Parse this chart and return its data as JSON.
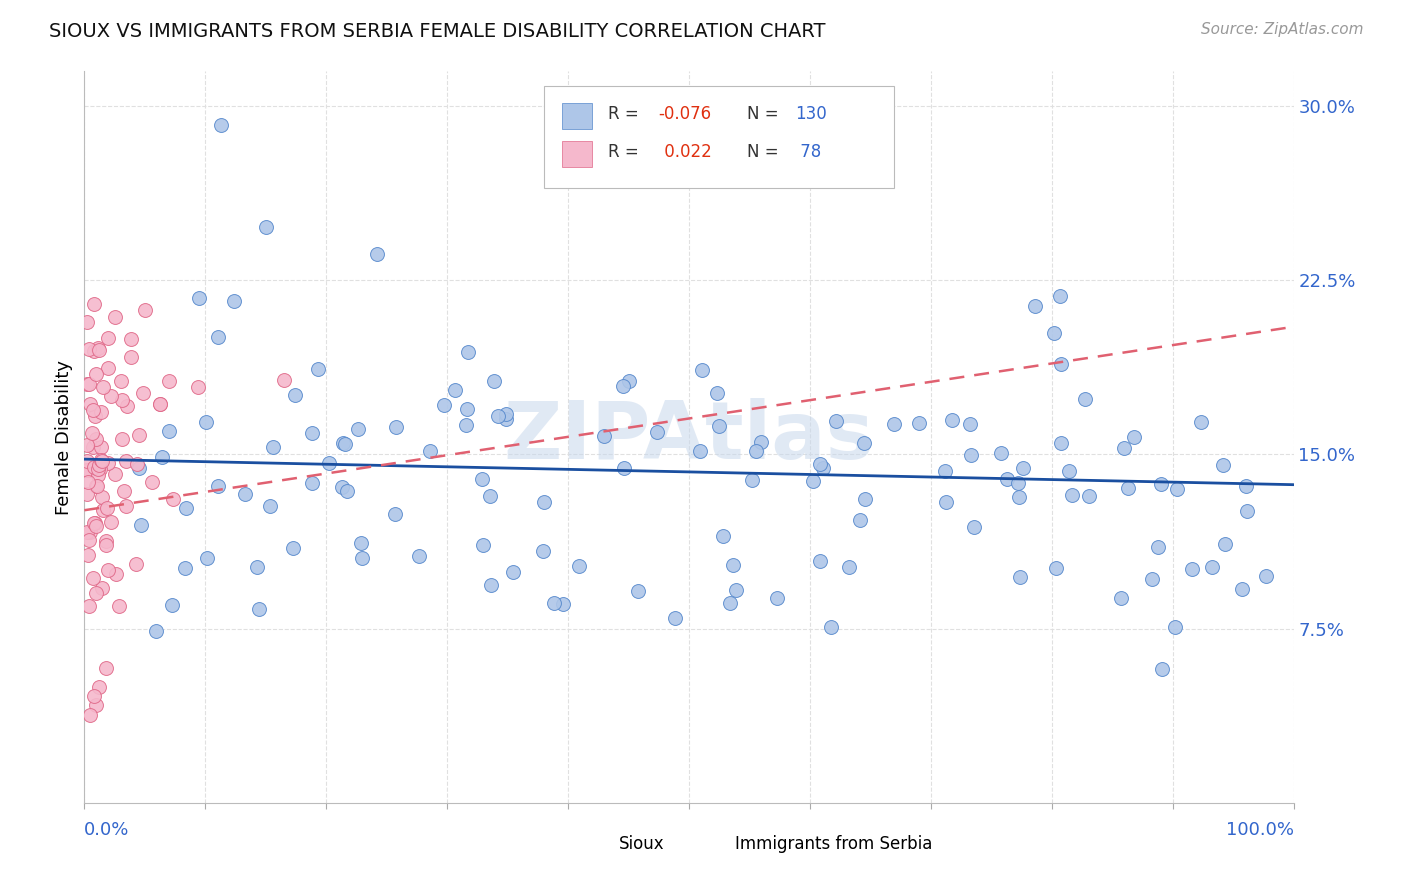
{
  "title": "SIOUX VS IMMIGRANTS FROM SERBIA FEMALE DISABILITY CORRELATION CHART",
  "source_text": "Source: ZipAtlas.com",
  "ylabel": "Female Disability",
  "xmin": 0.0,
  "xmax": 1.0,
  "ymin": 0.0,
  "ymax": 0.315,
  "sioux_color": "#aec6e8",
  "sioux_edge_color": "#5588cc",
  "serbia_color": "#f5b8cc",
  "serbia_edge_color": "#e06888",
  "trend_sioux_color": "#1a4fa0",
  "trend_serbia_color": "#e06070",
  "R_sioux": -0.076,
  "N_sioux": 130,
  "R_serbia": 0.022,
  "N_serbia": 78,
  "watermark": "ZIPAtlas",
  "watermark_color": "#c8d8ec",
  "background_color": "#ffffff",
  "grid_color": "#e0e0e0",
  "legend_R_color": "#e03010",
  "legend_N_color": "#3366cc",
  "ytick_color": "#3366cc",
  "sioux_trend_y0": 0.148,
  "sioux_trend_y1": 0.137,
  "serbia_trend_y0": 0.126,
  "serbia_trend_y1": 0.205
}
